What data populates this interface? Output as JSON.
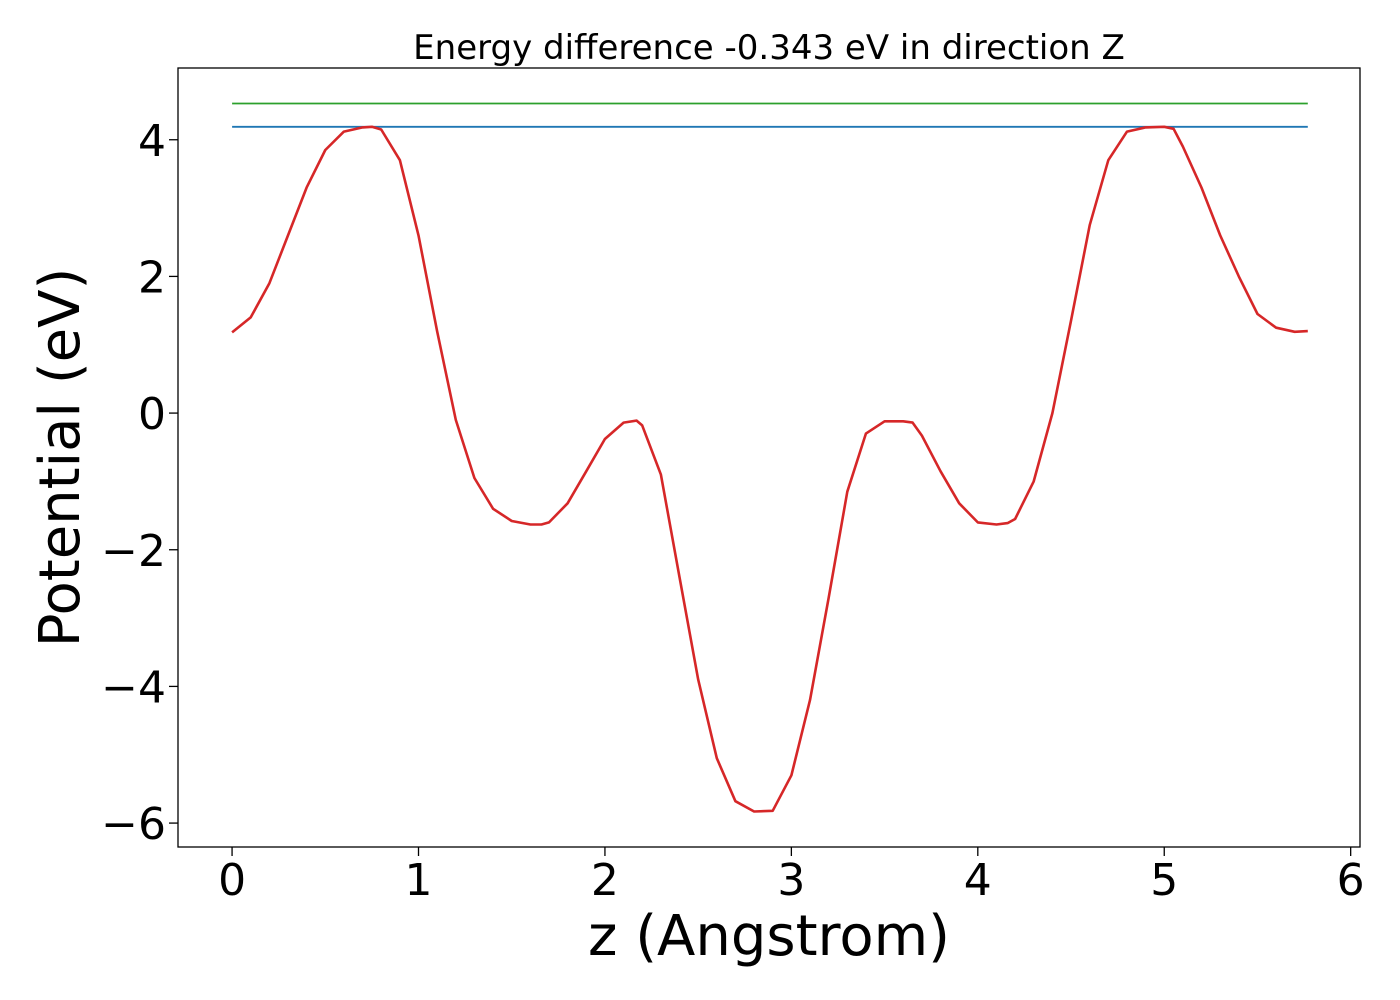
{
  "chart_data": {
    "type": "line",
    "title": "Energy difference -0.343 eV in direction Z",
    "xlabel": "z (Angstrom)",
    "ylabel": "Potential (eV)",
    "xlim": [
      -0.29,
      6.05
    ],
    "ylim": [
      -6.35,
      5.05
    ],
    "xticks": [
      0,
      1,
      2,
      3,
      4,
      5,
      6
    ],
    "xtick_labels": [
      "0",
      "1",
      "2",
      "3",
      "4",
      "5",
      "6"
    ],
    "yticks": [
      4,
      2,
      0,
      -2,
      -4,
      -6
    ],
    "ytick_labels": [
      "4",
      "2",
      "0",
      "−2",
      "−4",
      "−6"
    ],
    "grid": false,
    "series": [
      {
        "color": "#2ca02c",
        "x": [
          0,
          5.77
        ],
        "y": [
          4.53,
          4.53
        ]
      },
      {
        "color": "#1f77b4",
        "x": [
          0,
          5.77
        ],
        "y": [
          4.19,
          4.19
        ]
      },
      {
        "color": "#d62728",
        "x": [
          0,
          0.1,
          0.2,
          0.3,
          0.4,
          0.5,
          0.6,
          0.7,
          0.75,
          0.8,
          0.9,
          1.0,
          1.1,
          1.2,
          1.3,
          1.4,
          1.5,
          1.6,
          1.66,
          1.7,
          1.8,
          1.9,
          2.0,
          2.1,
          2.17,
          2.2,
          2.3,
          2.4,
          2.5,
          2.6,
          2.7,
          2.8,
          2.9,
          3.0,
          3.1,
          3.2,
          3.3,
          3.4,
          3.5,
          3.6,
          3.65,
          3.7,
          3.8,
          3.9,
          4.0,
          4.1,
          4.16,
          4.2,
          4.3,
          4.4,
          4.5,
          4.6,
          4.7,
          4.8,
          4.9,
          5.0,
          5.05,
          5.1,
          5.2,
          5.3,
          5.4,
          5.5,
          5.6,
          5.7,
          5.77
        ],
        "y": [
          1.18,
          1.4,
          1.9,
          2.6,
          3.3,
          3.85,
          4.12,
          4.18,
          4.19,
          4.15,
          3.7,
          2.6,
          1.2,
          -0.1,
          -0.95,
          -1.4,
          -1.58,
          -1.63,
          -1.63,
          -1.6,
          -1.32,
          -0.85,
          -0.38,
          -0.14,
          -0.11,
          -0.18,
          -0.9,
          -2.4,
          -3.9,
          -5.05,
          -5.68,
          -5.83,
          -5.82,
          -5.3,
          -4.2,
          -2.7,
          -1.15,
          -0.3,
          -0.12,
          -0.12,
          -0.14,
          -0.33,
          -0.85,
          -1.32,
          -1.6,
          -1.63,
          -1.61,
          -1.55,
          -1.0,
          0.0,
          1.35,
          2.75,
          3.7,
          4.12,
          4.18,
          4.19,
          4.16,
          3.9,
          3.3,
          2.6,
          2.0,
          1.45,
          1.25,
          1.19,
          1.2
        ]
      }
    ]
  }
}
